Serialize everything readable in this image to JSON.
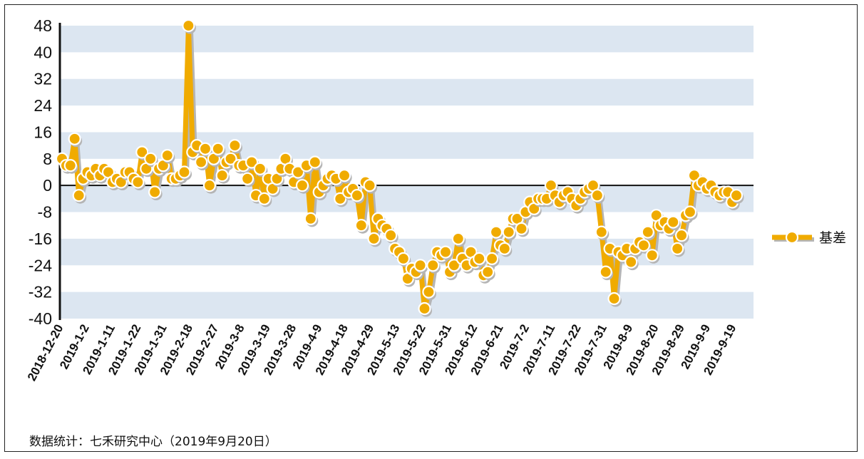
{
  "source_note": "数据统计：七禾研究中心（2019年9月20日）",
  "colors": {
    "line": "#F0AB00",
    "shadow": "#B5B5B5",
    "band": "#DCE6F1",
    "marker_fill": "#F0AB00",
    "marker_stroke": "#FFFFFF",
    "zero_line": "#111111"
  },
  "chart_data": {
    "type": "line",
    "title": "",
    "xlabel": "",
    "ylabel": "",
    "ylim": [
      -40,
      48
    ],
    "yticks": [
      48,
      40,
      32,
      24,
      16,
      8,
      0,
      -8,
      -16,
      -24,
      -32,
      -40
    ],
    "grid": "horizontal alternating bands",
    "legend_position": "right",
    "x_tick_labels": [
      "2018-12-20",
      "2019-1-2",
      "2019-1-11",
      "2019-1-22",
      "2019-1-31",
      "2019-2-18",
      "2019-2-27",
      "2019-3-8",
      "2019-3-19",
      "2019-3-28",
      "2019-4-9",
      "2019-4-18",
      "2019-4-29",
      "2019-5-13",
      "2019-5-22",
      "2019-5-31",
      "2019-6-12",
      "2019-6-21",
      "2019-7-2",
      "2019-7-11",
      "2019-7-22",
      "2019-7-31",
      "2019-8-9",
      "2019-8-20",
      "2019-8-29",
      "2019-9-9",
      "2019-9-19"
    ],
    "series": [
      {
        "name": "基差",
        "values": [
          8,
          6,
          6,
          14,
          -3,
          2,
          4,
          3,
          5,
          3,
          5,
          4,
          1,
          2,
          1,
          4,
          4,
          2,
          1,
          10,
          5,
          8,
          -2,
          5,
          6,
          9,
          2,
          2,
          3,
          4,
          48,
          10,
          12,
          7,
          11,
          0,
          8,
          11,
          3,
          7,
          8,
          12,
          6,
          6,
          2,
          7,
          -3,
          5,
          -4,
          2,
          -1,
          2,
          5,
          8,
          5,
          1,
          4,
          0,
          6,
          -10,
          7,
          -2,
          0,
          2,
          3,
          2,
          -4,
          3,
          -2,
          -1,
          -3,
          -12,
          1,
          0,
          -16,
          -10,
          -12,
          -13,
          -15,
          -19,
          -20,
          -22,
          -28,
          -25,
          -26,
          -24,
          -37,
          -32,
          -24,
          -20,
          -21,
          -20,
          -26,
          -24,
          -16,
          -22,
          -24,
          -20,
          -23,
          -22,
          -27,
          -26,
          -22,
          -14,
          -18,
          -19,
          -14,
          -10,
          -10,
          -13,
          -8,
          -5,
          -7,
          -4,
          -4,
          -4,
          0,
          -3,
          -5,
          -3,
          -2,
          -4,
          -6,
          -4,
          -2,
          -1,
          0,
          -3,
          -14,
          -26,
          -19,
          -34,
          -20,
          -21,
          -19,
          -23,
          -19,
          -17,
          -18,
          -14,
          -21,
          -9,
          -12,
          -11,
          -13,
          -11,
          -19,
          -15,
          -9,
          -8,
          3,
          0,
          1,
          -1,
          0,
          -2,
          -3,
          -2,
          -2,
          -5,
          -3
        ]
      }
    ]
  }
}
